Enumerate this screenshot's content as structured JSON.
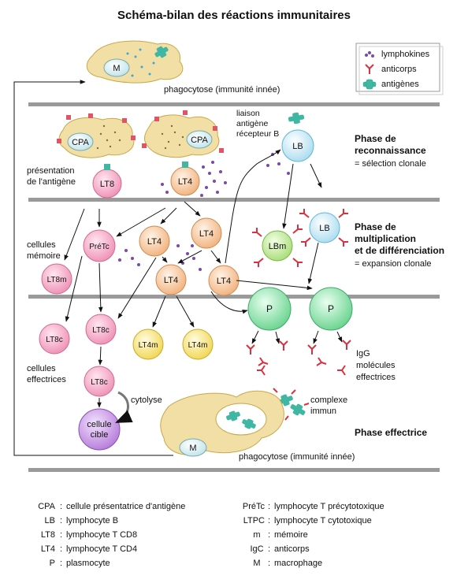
{
  "title": "Schéma-bilan des réactions immunitaires",
  "legend": {
    "lymphokines": "lymphokines",
    "anticorps": "anticorps",
    "antigenes": "antigènes"
  },
  "phases": {
    "reconnaissance_title_1": "Phase de",
    "reconnaissance_title_2": "reconnaissance",
    "reconnaissance_sub": "= sélection clonale",
    "multiplication_title_1": "Phase de",
    "multiplication_title_2": "multiplication",
    "multiplication_title_3": "et de différenciation",
    "multiplication_sub": "= expansion clonale",
    "effectrice_title": "Phase effectrice"
  },
  "annotations": {
    "phagocytose_top": "phagocytose (immunité innée)",
    "phagocytose_bottom": "phagocytose (immunité innée)",
    "liaison_1": "liaison",
    "liaison_2": "antigène",
    "liaison_3": "récepteur B",
    "presentation_1": "présentation",
    "presentation_2": "de l'antigène",
    "cellules_memoire_1": "cellules",
    "cellules_memoire_2": "mémoire",
    "cellules_effectrices_1": "cellules",
    "cellules_effectrices_2": "effectrices",
    "cytolyse": "cytolyse",
    "igg_1": "IgG",
    "igg_2": "molécules",
    "igg_3": "effectrices",
    "complexe_1": "complexe",
    "complexe_2": "immun"
  },
  "cells": {
    "M": "M",
    "CPA": "CPA",
    "LT8": "LT8",
    "LT4": "LT4",
    "LB": "LB",
    "PreTc": "PréTc",
    "LBm": "LBm",
    "LT8m": "LT8m",
    "P": "P",
    "LT8c": "LT8c",
    "LT4m": "LT4m",
    "cellule_cible_1": "cellule",
    "cellule_cible_2": "cible"
  },
  "glossary": [
    {
      "abbr": "CPA",
      "def": "cellule présentatrice d'antigène"
    },
    {
      "abbr": "LB",
      "def": "lymphocyte B"
    },
    {
      "abbr": "LT8",
      "def": "lymphocyte T CD8"
    },
    {
      "abbr": "LT4",
      "def": "lymphocyte T CD4"
    },
    {
      "abbr": "P",
      "def": "plasmocyte"
    },
    {
      "abbr": "PréTc",
      "def": "lymphocyte T précytotoxique"
    },
    {
      "abbr": "LTPC",
      "def": "lymphocyte T cytotoxique"
    },
    {
      "abbr": "m",
      "def": "mémoire"
    },
    {
      "abbr": "IgC",
      "def": "anticorps"
    },
    {
      "abbr": "M",
      "def": "macrophage"
    }
  ],
  "colors": {
    "lymphokine": "#7a4aa8",
    "antibody": "#d8313f",
    "antigen": "#3fb7a2",
    "divider": "#9a9a9a",
    "lt4_fill": "#f6c79a",
    "lt8_fill": "#f5a9c4",
    "lb_fill": "#bfe5f2",
    "lbm_fill": "#bfe89a",
    "p_fill": "#8fe0a8",
    "lt4m_fill": "#f7e27a",
    "cpa_fill": "#f2dfa5",
    "cible_fill": "#c08be0"
  }
}
